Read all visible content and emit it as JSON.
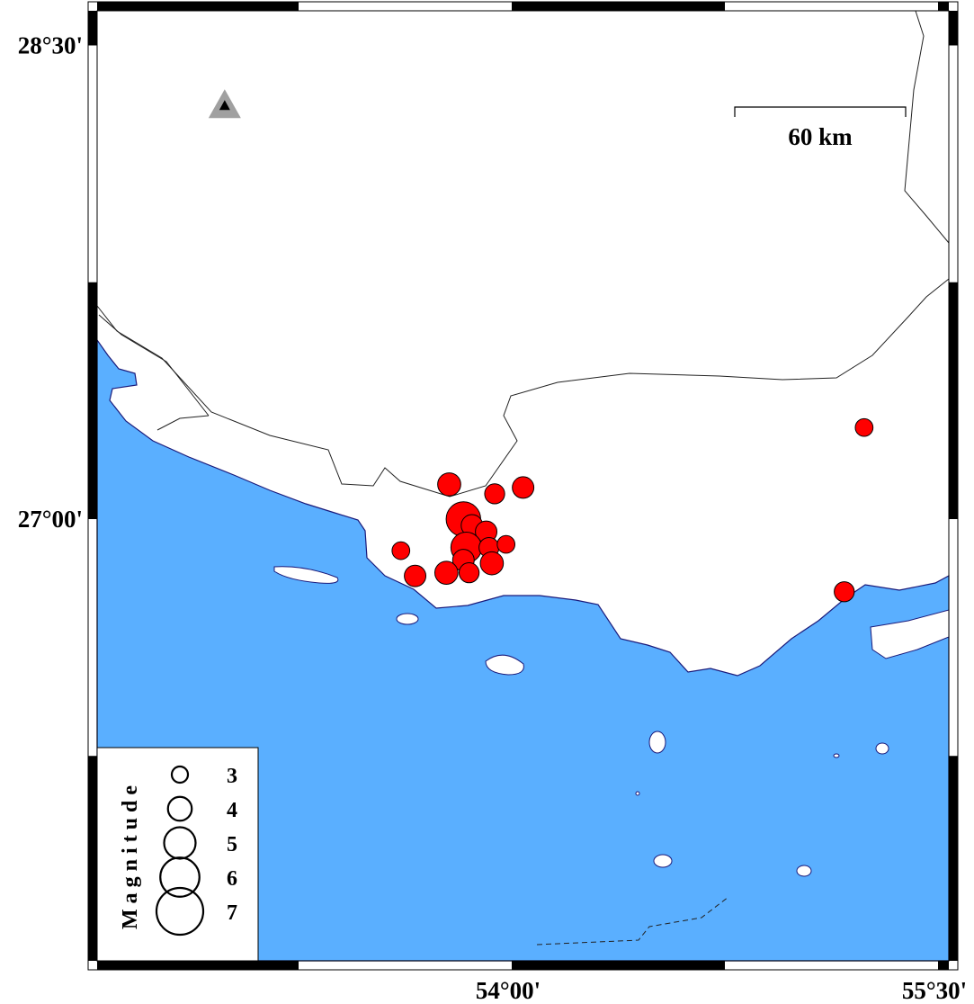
{
  "map": {
    "extent": {
      "lon_min": 52.54,
      "lon_max": 55.54,
      "lat_min": 25.6,
      "lat_max": 28.61
    },
    "colors": {
      "sea": "#5aafff",
      "land": "#ffffff",
      "event": "#ff0000",
      "station": "#a0a0a0"
    },
    "ticks": {
      "lat": [
        {
          "value": 28.5,
          "label": "28°30'"
        },
        {
          "value": 27.0,
          "label": "27°00'"
        }
      ],
      "lon": [
        {
          "value": 54.0,
          "label": "54°00'"
        },
        {
          "value": 55.5,
          "label": "55°30'"
        }
      ]
    },
    "scale_bar": {
      "label": "60 km"
    },
    "station": {
      "symbol": "triangle",
      "lon": 52.99,
      "lat": 28.31
    },
    "events": [
      {
        "lon": 53.78,
        "lat": 27.11,
        "mag": 3.9
      },
      {
        "lon": 53.94,
        "lat": 27.08,
        "mag": 3.5
      },
      {
        "lon": 54.04,
        "lat": 27.1,
        "mag": 3.7
      },
      {
        "lon": 53.83,
        "lat": 27.0,
        "mag": 5.4
      },
      {
        "lon": 53.86,
        "lat": 26.98,
        "mag": 3.7
      },
      {
        "lon": 53.91,
        "lat": 26.96,
        "mag": 3.7
      },
      {
        "lon": 53.84,
        "lat": 26.91,
        "mag": 4.9
      },
      {
        "lon": 53.92,
        "lat": 26.91,
        "mag": 3.5
      },
      {
        "lon": 53.98,
        "lat": 26.92,
        "mag": 3.2
      },
      {
        "lon": 53.93,
        "lat": 26.86,
        "mag": 3.9
      },
      {
        "lon": 53.83,
        "lat": 26.87,
        "mag": 3.7
      },
      {
        "lon": 53.85,
        "lat": 26.83,
        "mag": 3.5
      },
      {
        "lon": 53.61,
        "lat": 26.9,
        "mag": 3.2
      },
      {
        "lon": 53.66,
        "lat": 26.82,
        "mag": 3.7
      },
      {
        "lon": 53.77,
        "lat": 26.83,
        "mag": 3.9
      },
      {
        "lon": 55.24,
        "lat": 27.29,
        "mag": 3.2
      },
      {
        "lon": 55.17,
        "lat": 26.77,
        "mag": 3.5
      }
    ],
    "legend": {
      "title": "Magnitude",
      "items": [
        {
          "mag": 3,
          "label": "3"
        },
        {
          "mag": 4,
          "label": "4"
        },
        {
          "mag": 5,
          "label": "5"
        },
        {
          "mag": 6,
          "label": "6"
        },
        {
          "mag": 7,
          "label": "7"
        }
      ]
    }
  }
}
